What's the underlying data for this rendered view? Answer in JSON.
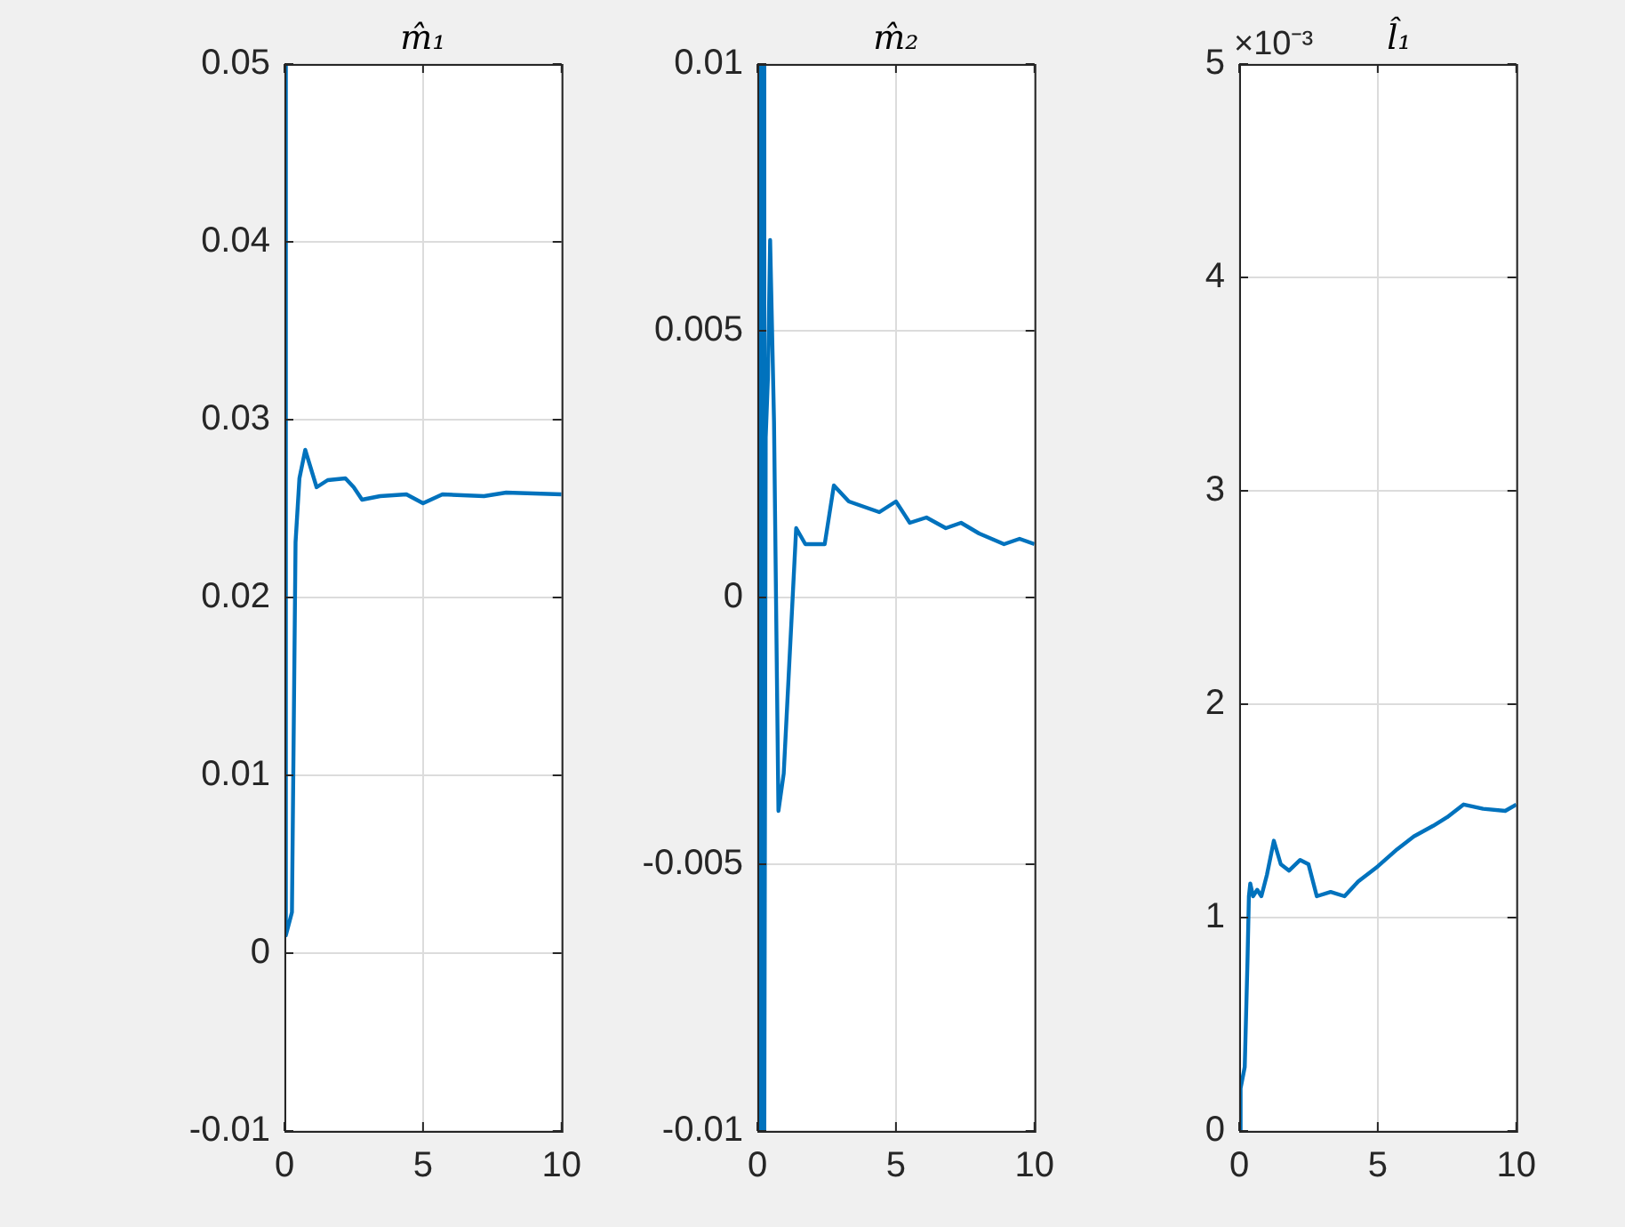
{
  "chart_data": [
    {
      "type": "line",
      "title": "m̂₁",
      "xlim": [
        0,
        10
      ],
      "xticks": [
        0,
        5,
        10
      ],
      "ylim": [
        -0.01,
        0.05
      ],
      "yticks": [
        -0.01,
        0,
        0.01,
        0.02,
        0.03,
        0.04,
        0.05
      ],
      "grid": true,
      "marker": "none",
      "series": [
        {
          "color": "#0072bd",
          "x": [
            0,
            0.05,
            0.27,
            0.4,
            0.54,
            0.75,
            1.16,
            1.56,
            2.2,
            2.5,
            2.8,
            3.45,
            4.4,
            5,
            5.7,
            7.2,
            8,
            10
          ],
          "values": [
            0.05,
            0.001,
            0.0023,
            0.0231,
            0.0267,
            0.0283,
            0.0262,
            0.0266,
            0.0267,
            0.0262,
            0.0255,
            0.0257,
            0.0258,
            0.0253,
            0.0258,
            0.0257,
            0.0259,
            0.0258
          ]
        }
      ]
    },
    {
      "type": "line",
      "title": "m̂₂",
      "xlim": [
        0,
        10
      ],
      "xticks": [
        0,
        5,
        10
      ],
      "ylim": [
        -0.01,
        0.01
      ],
      "yticks": [
        -0.01,
        -0.005,
        0,
        0.005,
        0.01
      ],
      "grid": true,
      "marker": "none",
      "series": [
        {
          "color": "#0072bd",
          "x": [
            0,
            0.05,
            0.1,
            0.15,
            0.2,
            0.25,
            0.3,
            0.38,
            0.46,
            0.6,
            0.76,
            0.95,
            1.4,
            1.73,
            2.43,
            2.76,
            3.3,
            4.4,
            5,
            5.5,
            6.1,
            6.8,
            7.35,
            8,
            8.9,
            9.46,
            10
          ],
          "values": [
            0.01,
            -0.01,
            0.01,
            -0.01,
            0.01,
            -0.01,
            0.003,
            0.0041,
            0.0067,
            0.0033,
            -0.004,
            -0.0033,
            0.0013,
            0.001,
            0.001,
            0.0021,
            0.0018,
            0.0016,
            0.0018,
            0.0014,
            0.0015,
            0.0013,
            0.0014,
            0.0012,
            0.001,
            0.0011,
            0.001
          ]
        }
      ]
    },
    {
      "type": "line",
      "title": "l̂₁",
      "annotations": [
        "×10⁻³"
      ],
      "xlim": [
        0,
        10
      ],
      "xticks": [
        0,
        5,
        10
      ],
      "ylim": [
        0,
        5
      ],
      "yticks": [
        0,
        1,
        2,
        3,
        4,
        5
      ],
      "grid": true,
      "marker": "none",
      "series": [
        {
          "color": "#0072bd",
          "x": [
            0,
            0.05,
            0.2,
            0.3,
            0.35,
            0.4,
            0.5,
            0.65,
            0.8,
            1,
            1.25,
            1.5,
            1.8,
            2.2,
            2.5,
            2.8,
            3.3,
            3.8,
            4.3,
            5,
            5.7,
            6.3,
            7,
            7.5,
            8.1,
            8.8,
            9.6,
            10
          ],
          "values": [
            0,
            0.2,
            0.3,
            0.8,
            1.1,
            1.16,
            1.1,
            1.13,
            1.1,
            1.2,
            1.36,
            1.25,
            1.22,
            1.27,
            1.25,
            1.1,
            1.12,
            1.1,
            1.17,
            1.24,
            1.32,
            1.38,
            1.43,
            1.47,
            1.53,
            1.51,
            1.5,
            1.53
          ]
        }
      ]
    }
  ]
}
